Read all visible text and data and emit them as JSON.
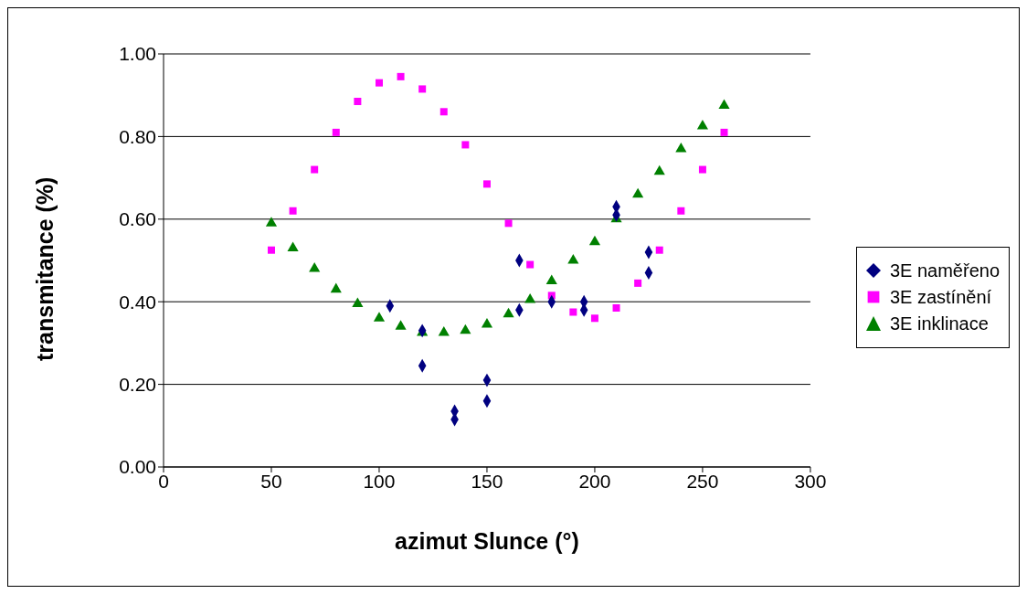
{
  "chart_data": {
    "type": "scatter",
    "xlabel": "azimut Slunce (°)",
    "ylabel": "transmitance (%)",
    "xlim": [
      0,
      300
    ],
    "xticks": [
      0,
      50,
      100,
      150,
      200,
      250,
      300
    ],
    "ylim": [
      0,
      1
    ],
    "yticks": [
      {
        "value": 0,
        "label": "0.00"
      },
      {
        "value": 0.2,
        "label": "0.20"
      },
      {
        "value": 0.4,
        "label": "0.40"
      },
      {
        "value": 0.6,
        "label": "0.60"
      },
      {
        "value": 0.8,
        "label": "0.80"
      },
      {
        "value": 1,
        "label": "1.00"
      }
    ],
    "grid": "y",
    "legend": "right",
    "series": [
      {
        "name": "3E naměřeno",
        "color": "#000080",
        "marker": "diamond",
        "x": [
          105,
          120,
          120,
          135,
          135,
          150,
          150,
          165,
          165,
          180,
          195,
          195,
          210,
          210,
          225,
          225
        ],
        "values": [
          0.39,
          0.33,
          0.245,
          0.135,
          0.115,
          0.21,
          0.16,
          0.5,
          0.38,
          0.4,
          0.4,
          0.38,
          0.63,
          0.61,
          0.52,
          0.47
        ]
      },
      {
        "name": "3E zastínění",
        "color": "#ff00ff",
        "marker": "square",
        "x": [
          50,
          60,
          70,
          80,
          90,
          100,
          110,
          120,
          130,
          140,
          150,
          160,
          170,
          180,
          190,
          200,
          210,
          220,
          230,
          240,
          250,
          260
        ],
        "values": [
          0.525,
          0.62,
          0.72,
          0.81,
          0.885,
          0.93,
          0.945,
          0.915,
          0.86,
          0.78,
          0.685,
          0.59,
          0.49,
          0.415,
          0.375,
          0.36,
          0.385,
          0.445,
          0.525,
          0.62,
          0.72,
          0.81
        ]
      },
      {
        "name": "3E inklinace",
        "color": "#008000",
        "marker": "triangle",
        "x": [
          50,
          60,
          70,
          80,
          90,
          100,
          110,
          120,
          130,
          140,
          150,
          160,
          170,
          180,
          190,
          200,
          210,
          220,
          230,
          240,
          250,
          260
        ],
        "values": [
          0.59,
          0.53,
          0.48,
          0.43,
          0.395,
          0.36,
          0.34,
          0.325,
          0.325,
          0.33,
          0.345,
          0.37,
          0.405,
          0.45,
          0.5,
          0.545,
          0.6,
          0.66,
          0.715,
          0.77,
          0.825,
          0.875
        ]
      }
    ]
  }
}
